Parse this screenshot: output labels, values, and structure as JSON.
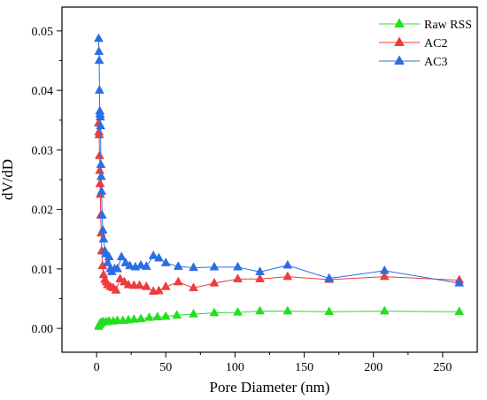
{
  "chart_data": {
    "type": "scatter",
    "xlabel": "Pore Diameter (nm)",
    "ylabel": "dV/dD",
    "xlim": [
      -25,
      275
    ],
    "ylim": [
      -0.004,
      0.054
    ],
    "xticks": [
      0,
      50,
      100,
      150,
      200,
      250
    ],
    "yticks": [
      0.0,
      0.01,
      0.02,
      0.03,
      0.04,
      0.05
    ],
    "xtick_labels": [
      "0",
      "50",
      "100",
      "150",
      "200",
      "250"
    ],
    "ytick_labels": [
      "0.00",
      "0.01",
      "0.02",
      "0.03",
      "0.04",
      "0.05"
    ],
    "marker": "triangle-up",
    "legend_position": "top-right",
    "series": [
      {
        "name": "Raw RSS",
        "color": "#22e01f",
        "points": [
          [
            1.5,
            0.0003
          ],
          [
            2.0,
            0.0006
          ],
          [
            2.5,
            0.0008
          ],
          [
            3.0,
            0.0009
          ],
          [
            3.5,
            0.001
          ],
          [
            5,
            0.0011
          ],
          [
            7,
            0.0011
          ],
          [
            9,
            0.0012
          ],
          [
            12,
            0.0012
          ],
          [
            15,
            0.0013
          ],
          [
            19,
            0.0013
          ],
          [
            23,
            0.0014
          ],
          [
            27,
            0.0015
          ],
          [
            32,
            0.0016
          ],
          [
            38,
            0.0018
          ],
          [
            44,
            0.0019
          ],
          [
            50,
            0.002
          ],
          [
            58,
            0.0022
          ],
          [
            70,
            0.0024
          ],
          [
            85,
            0.0026
          ],
          [
            102,
            0.0027
          ],
          [
            118,
            0.0029
          ],
          [
            138,
            0.0029
          ],
          [
            168,
            0.0028
          ],
          [
            208,
            0.0029
          ],
          [
            262,
            0.0028
          ]
        ]
      },
      {
        "name": "AC2",
        "color": "#ee3b3b",
        "points": [
          [
            1.5,
            0.0345
          ],
          [
            1.7,
            0.033
          ],
          [
            1.9,
            0.0325
          ],
          [
            2.1,
            0.029
          ],
          [
            2.3,
            0.0265
          ],
          [
            2.5,
            0.0243
          ],
          [
            2.7,
            0.0225
          ],
          [
            3.0,
            0.019
          ],
          [
            3.3,
            0.016
          ],
          [
            3.7,
            0.013
          ],
          [
            4.3,
            0.0105
          ],
          [
            5,
            0.009
          ],
          [
            6,
            0.0082
          ],
          [
            7,
            0.0078
          ],
          [
            8,
            0.0073
          ],
          [
            10,
            0.007
          ],
          [
            12,
            0.0068
          ],
          [
            14,
            0.0064
          ],
          [
            17,
            0.0083
          ],
          [
            20,
            0.0078
          ],
          [
            23,
            0.0073
          ],
          [
            27,
            0.0072
          ],
          [
            31,
            0.0072
          ],
          [
            36,
            0.007
          ],
          [
            41,
            0.0062
          ],
          [
            45,
            0.0063
          ],
          [
            50,
            0.007
          ],
          [
            59,
            0.0078
          ],
          [
            70,
            0.0068
          ],
          [
            85,
            0.0076
          ],
          [
            102,
            0.0083
          ],
          [
            118,
            0.0083
          ],
          [
            138,
            0.0087
          ],
          [
            168,
            0.0082
          ],
          [
            208,
            0.0087
          ],
          [
            262,
            0.0081
          ]
        ]
      },
      {
        "name": "AC3",
        "color": "#2a6ee6",
        "points": [
          [
            1.5,
            0.0487
          ],
          [
            1.7,
            0.0465
          ],
          [
            1.9,
            0.045
          ],
          [
            2.1,
            0.04
          ],
          [
            2.3,
            0.0365
          ],
          [
            2.5,
            0.036
          ],
          [
            2.7,
            0.0355
          ],
          [
            2.9,
            0.034
          ],
          [
            3.1,
            0.0275
          ],
          [
            3.3,
            0.0255
          ],
          [
            3.6,
            0.023
          ],
          [
            4.0,
            0.019
          ],
          [
            4.5,
            0.0165
          ],
          [
            5,
            0.015
          ],
          [
            6,
            0.013
          ],
          [
            7,
            0.0125
          ],
          [
            8,
            0.011
          ],
          [
            9,
            0.012
          ],
          [
            10,
            0.01
          ],
          [
            11,
            0.0095
          ],
          [
            13,
            0.01
          ],
          [
            15,
            0.01
          ],
          [
            18,
            0.012
          ],
          [
            21,
            0.011
          ],
          [
            24,
            0.0105
          ],
          [
            28,
            0.0103
          ],
          [
            32,
            0.0106
          ],
          [
            36,
            0.0104
          ],
          [
            41,
            0.0122
          ],
          [
            45,
            0.0118
          ],
          [
            50,
            0.011
          ],
          [
            59,
            0.0104
          ],
          [
            70,
            0.0102
          ],
          [
            85,
            0.0103
          ],
          [
            102,
            0.0103
          ],
          [
            118,
            0.0095
          ],
          [
            138,
            0.0106
          ],
          [
            168,
            0.0084
          ],
          [
            208,
            0.0097
          ],
          [
            262,
            0.0076
          ]
        ]
      }
    ]
  }
}
